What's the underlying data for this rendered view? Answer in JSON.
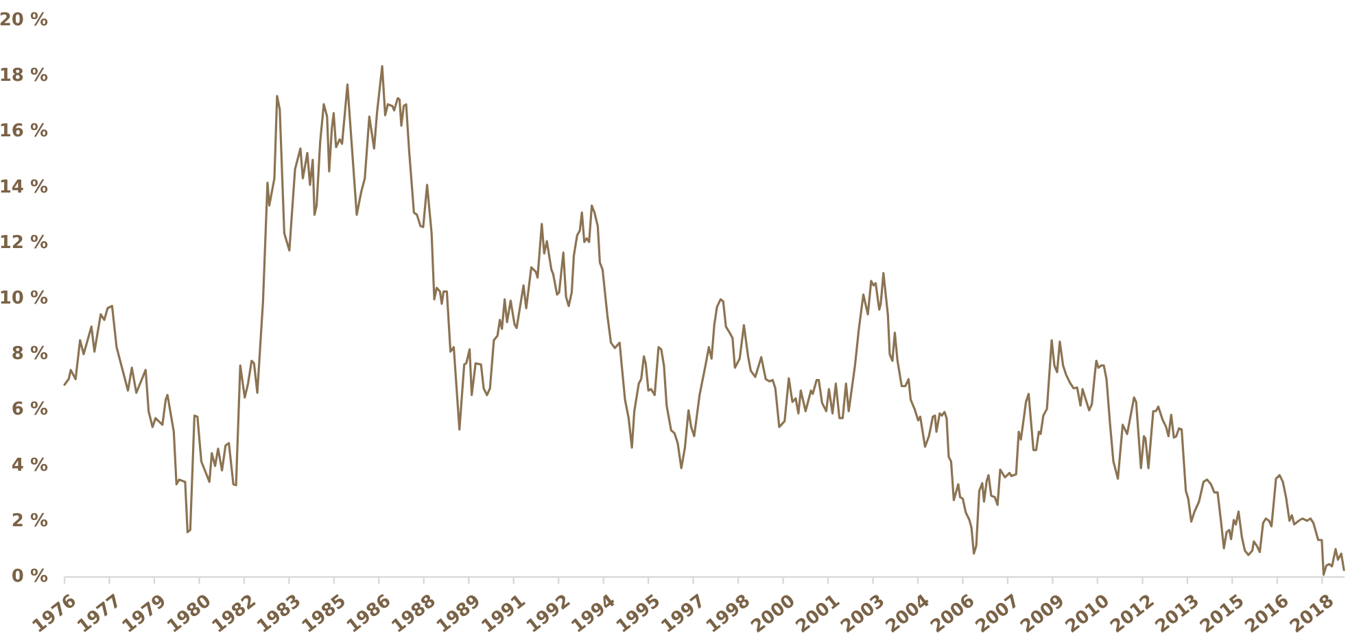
{
  "chart_data": {
    "type": "line",
    "x": [
      1976.0,
      1976.14,
      1976.21,
      1976.37,
      1976.52,
      1976.64,
      1976.9,
      1977.0,
      1977.21,
      1977.33,
      1977.44,
      1977.59,
      1977.74,
      1978.12,
      1978.25,
      1978.4,
      1978.71,
      1978.81,
      1978.94,
      1979.04,
      1979.27,
      1979.38,
      1979.44,
      1979.65,
      1979.74,
      1979.83,
      1980.03,
      1980.11,
      1980.2,
      1980.34,
      1980.44,
      1980.57,
      1980.84,
      1980.92,
      1981.03,
      1981.13,
      1981.26,
      1981.38,
      1981.49,
      1981.64,
      1981.73,
      1981.87,
      1982.02,
      1982.13,
      1982.25,
      1982.33,
      1982.44,
      1982.63,
      1982.78,
      1982.84,
      1983.01,
      1983.1,
      1983.19,
      1983.34,
      1983.51,
      1983.7,
      1983.88,
      1983.96,
      1984.11,
      1984.2,
      1984.29,
      1984.35,
      1984.42,
      1984.54,
      1984.66,
      1984.77,
      1984.84,
      1984.93,
      1984.99,
      1985.07,
      1985.19,
      1985.27,
      1985.45,
      1985.76,
      1985.91,
      1986.03,
      1986.18,
      1986.34,
      1986.44,
      1986.61,
      1986.71,
      1986.8,
      1986.95,
      1987.01,
      1987.13,
      1987.19,
      1987.25,
      1987.33,
      1987.41,
      1987.51,
      1987.67,
      1987.77,
      1987.89,
      1987.98,
      1988.11,
      1988.26,
      1988.35,
      1988.43,
      1988.54,
      1988.6,
      1988.66,
      1988.77,
      1988.89,
      1989.0,
      1989.19,
      1989.35,
      1989.42,
      1989.53,
      1989.6,
      1989.73,
      1989.91,
      1990.0,
      1990.11,
      1990.21,
      1990.34,
      1990.46,
      1990.54,
      1990.61,
      1990.7,
      1990.78,
      1990.9,
      1991.03,
      1991.1,
      1991.33,
      1991.42,
      1991.59,
      1991.74,
      1991.8,
      1991.94,
      1992.02,
      1992.11,
      1992.26,
      1992.32,
      1992.45,
      1992.52,
      1992.66,
      1992.75,
      1992.84,
      1992.94,
      1993.01,
      1993.12,
      1993.21,
      1993.28,
      1993.36,
      1993.44,
      1993.52,
      1993.61,
      1993.7,
      1993.81,
      1993.88,
      1993.97,
      1994.13,
      1994.25,
      1994.38,
      1994.54,
      1994.61,
      1994.72,
      1994.84,
      1994.95,
      1995.03,
      1995.18,
      1995.26,
      1995.35,
      1995.41,
      1995.5,
      1995.59,
      1995.71,
      1995.84,
      1995.93,
      1996.02,
      1996.11,
      1996.26,
      1996.37,
      1996.48,
      1996.6,
      1996.72,
      1996.84,
      1996.93,
      1997.03,
      1997.21,
      1997.3,
      1997.42,
      1997.52,
      1997.61,
      1997.7,
      1997.79,
      1997.91,
      1998.0,
      1998.09,
      1998.23,
      1998.31,
      1998.39,
      1998.55,
      1998.69,
      1998.83,
      1998.92,
      1999.07,
      1999.27,
      1999.42,
      1999.55,
      1999.65,
      1999.74,
      1999.87,
      2000.05,
      2000.19,
      2000.31,
      2000.42,
      2000.51,
      2000.59,
      2000.75,
      2000.93,
      2000.99,
      2001.12,
      2001.19,
      2001.3,
      2001.44,
      2001.53,
      2001.65,
      2001.76,
      2001.88,
      2001.99,
      2002.1,
      2002.19,
      2002.4,
      2002.53,
      2002.68,
      2002.83,
      2002.94,
      2003.02,
      2003.09,
      2003.21,
      2003.26,
      2003.35,
      2003.5,
      2003.56,
      2003.65,
      2003.73,
      2003.82,
      2003.96,
      2004.08,
      2004.19,
      2004.26,
      2004.39,
      2004.51,
      2004.58,
      2004.74,
      2004.87,
      2005.0,
      2005.07,
      2005.12,
      2005.23,
      2005.3,
      2005.39,
      2005.46,
      2005.53,
      2005.61,
      2005.7,
      2005.85,
      2005.91,
      2006.0,
      2006.1,
      2006.22,
      2006.29,
      2006.37,
      2006.45,
      2006.55,
      2006.65,
      2006.71,
      2006.8,
      2006.86,
      2006.95,
      2007.07,
      2007.16,
      2007.25,
      2007.41,
      2007.56,
      2007.62,
      2007.78,
      2007.87,
      2007.94,
      2008.05,
      2008.11,
      2008.2,
      2008.36,
      2008.45,
      2008.54,
      2008.6,
      2008.69,
      2008.81,
      2008.97,
      2009.06,
      2009.15,
      2009.24,
      2009.35,
      2009.45,
      2009.58,
      2009.7,
      2009.82,
      2009.93,
      2010.0,
      2010.22,
      2010.31,
      2010.4,
      2010.46,
      2010.53,
      2010.62,
      2010.71,
      2010.8,
      2010.92,
      2011.03,
      2011.18,
      2011.34,
      2011.49,
      2011.72,
      2011.79,
      2011.95,
      2012.05,
      2012.1,
      2012.2,
      2012.36,
      2012.45,
      2012.53,
      2012.67,
      2012.79,
      2012.87,
      2012.96,
      2013.05,
      2013.13,
      2013.22,
      2013.31,
      2013.45,
      2013.53,
      2013.63,
      2013.74,
      2013.89,
      2014.04,
      2014.16,
      2014.29,
      2014.4,
      2014.51,
      2014.63,
      2014.72,
      2014.81,
      2014.9,
      2014.96,
      2015.05,
      2015.12,
      2015.21,
      2015.32,
      2015.42,
      2015.54,
      2015.67,
      2015.72,
      2015.82,
      2015.92,
      2016.03,
      2016.12,
      2016.23,
      2016.31,
      2016.4,
      2016.46,
      2016.58,
      2016.69,
      2016.8,
      2016.91,
      2016.99,
      2017.07,
      2017.22,
      2017.34,
      2017.5,
      2017.61,
      2017.71,
      2017.87,
      2017.99,
      2018.05,
      2018.14,
      2018.24,
      2018.33,
      2018.45,
      2018.53,
      2018.64,
      2018.73
    ],
    "series": [
      {
        "color": "#8b7352",
        "values": [
          6.91,
          7.11,
          7.44,
          7.11,
          8.51,
          8.01,
          9.0,
          8.1,
          9.44,
          9.24,
          9.66,
          9.74,
          8.26,
          6.7,
          7.52,
          6.62,
          7.44,
          5.96,
          5.39,
          5.71,
          5.47,
          6.37,
          6.54,
          5.22,
          3.33,
          3.5,
          3.42,
          1.61,
          1.69,
          5.8,
          5.76,
          4.15,
          3.42,
          4.45,
          3.99,
          4.61,
          3.83,
          4.73,
          4.81,
          3.33,
          3.3,
          7.6,
          6.45,
          6.95,
          7.77,
          7.68,
          6.62,
          9.9,
          14.17,
          13.35,
          14.33,
          17.29,
          16.8,
          12.36,
          11.74,
          14.66,
          15.4,
          14.33,
          15.24,
          14.09,
          14.99,
          13.02,
          13.35,
          15.65,
          16.99,
          16.55,
          14.58,
          16.14,
          16.67,
          15.45,
          15.73,
          15.57,
          17.7,
          13.02,
          13.84,
          14.33,
          16.55,
          15.4,
          16.72,
          18.36,
          16.6,
          16.99,
          16.93,
          16.77,
          17.21,
          17.16,
          16.22,
          16.93,
          16.99,
          15.32,
          13.1,
          13.02,
          12.61,
          12.58,
          14.09,
          12.36,
          9.98,
          10.39,
          10.26,
          9.82,
          10.26,
          10.26,
          8.1,
          8.26,
          5.3,
          7.64,
          7.68,
          8.18,
          6.54,
          7.68,
          7.64,
          6.78,
          6.54,
          6.78,
          8.51,
          8.67,
          9.24,
          8.92,
          9.98,
          9.16,
          9.93,
          9.08,
          8.95,
          10.48,
          9.66,
          11.13,
          10.97,
          10.76,
          12.69,
          11.63,
          12.07,
          11.05,
          10.89,
          10.15,
          10.23,
          11.66,
          10.07,
          9.74,
          10.23,
          11.54,
          12.28,
          12.45,
          13.1,
          12.04,
          12.17,
          12.04,
          13.35,
          13.1,
          12.61,
          11.3,
          11.05,
          9.41,
          8.42,
          8.23,
          8.42,
          7.6,
          6.37,
          5.71,
          4.65,
          5.96,
          6.95,
          7.11,
          7.93,
          7.68,
          6.7,
          6.75,
          6.54,
          8.26,
          8.18,
          7.6,
          6.16,
          5.27,
          5.17,
          4.81,
          3.91,
          4.65,
          5.99,
          5.39,
          5.06,
          6.54,
          7.03,
          7.68,
          8.26,
          7.85,
          9.05,
          9.7,
          9.98,
          9.9,
          9.0,
          8.75,
          8.59,
          7.52,
          7.85,
          9.05,
          7.93,
          7.41,
          7.19,
          7.9,
          7.11,
          7.03,
          7.08,
          6.78,
          5.39,
          5.6,
          7.14,
          6.29,
          6.42,
          5.88,
          6.7,
          5.96,
          6.7,
          6.58,
          7.08,
          7.08,
          6.26,
          5.96,
          6.75,
          5.88,
          6.95,
          5.71,
          5.71,
          6.95,
          5.96,
          7.6,
          8.92,
          10.15,
          9.44,
          10.64,
          10.48,
          10.56,
          9.61,
          9.82,
          10.92,
          9.41,
          8.01,
          7.77,
          8.78,
          7.77,
          6.86,
          6.86,
          7.11,
          6.37,
          6.04,
          5.63,
          5.76,
          4.68,
          5.06,
          5.76,
          5.8,
          5.22,
          5.88,
          5.8,
          5.93,
          5.71,
          4.32,
          4.15,
          2.76,
          3.33,
          2.87,
          2.81,
          2.32,
          2.05,
          1.77,
          0.84,
          1.12,
          3.09,
          3.37,
          2.71,
          3.46,
          3.66,
          2.92,
          2.87,
          2.59,
          3.86,
          3.58,
          3.74,
          3.63,
          3.69,
          5.22,
          4.94,
          5.8,
          6.29,
          6.58,
          4.56,
          4.56,
          5.22,
          5.14,
          5.8,
          6.04,
          8.51,
          7.6,
          7.36,
          8.46,
          7.6,
          7.27,
          6.98,
          6.78,
          6.81,
          6.16,
          6.75,
          5.99,
          6.21,
          7.19,
          7.77,
          7.52,
          7.6,
          7.6,
          7.11,
          5.47,
          4.15,
          3.53,
          5.47,
          5.14,
          6.45,
          6.29,
          3.91,
          5.06,
          4.98,
          3.91,
          5.96,
          5.96,
          6.12,
          5.66,
          5.39,
          5.06,
          5.83,
          5.01,
          5.06,
          5.34,
          5.3,
          3.09,
          2.81,
          1.99,
          2.35,
          2.71,
          3.42,
          3.5,
          3.33,
          3.04,
          3.04,
          1.94,
          1.03,
          1.61,
          1.69,
          1.36,
          2.05,
          1.89,
          2.35,
          1.44,
          0.95,
          0.79,
          0.95,
          1.28,
          1.12,
          0.9,
          1.94,
          2.1,
          2.02,
          1.82,
          2.84,
          3.53,
          3.66,
          3.42,
          2.84,
          2.02,
          2.22,
          1.89,
          2.02,
          2.1,
          2.02,
          2.1,
          1.94,
          1.33,
          1.33,
          0.08,
          0.41,
          0.46,
          0.38,
          1.0,
          0.62,
          0.84,
          0.25
        ]
      }
    ],
    "xlim": [
      1976.0,
      2018.75
    ],
    "xticks": [
      1976,
      {
        "value": 1977.5,
        "label": "1977"
      },
      1979,
      {
        "value": 1980.5,
        "label": "1980"
      },
      1982,
      {
        "value": 1983.5,
        "label": "1983"
      },
      1985,
      {
        "value": 1986.5,
        "label": "1986"
      },
      1988,
      {
        "value": 1989.5,
        "label": "1989"
      },
      1991,
      {
        "value": 1992.5,
        "label": "1992"
      },
      1994,
      {
        "value": 1995.5,
        "label": "1995"
      },
      1997,
      {
        "value": 1998.5,
        "label": "1998"
      },
      2000,
      {
        "value": 2001.5,
        "label": "2001"
      },
      2003,
      {
        "value": 2004.5,
        "label": "2004"
      },
      2006,
      {
        "value": 2007.5,
        "label": "2007"
      },
      2009,
      {
        "value": 2010.5,
        "label": "2010"
      },
      2012,
      {
        "value": 2013.5,
        "label": "2013"
      },
      2015,
      {
        "value": 2016.5,
        "label": "2016"
      },
      2018
    ],
    "ylim": [
      0,
      20
    ],
    "yticks": [
      {
        "value": 0,
        "label": "0 %"
      },
      {
        "value": 2,
        "label": "2 %"
      },
      {
        "value": 4,
        "label": "4 %"
      },
      {
        "value": 6,
        "label": "6 %"
      },
      {
        "value": 8,
        "label": "8 %"
      },
      {
        "value": 10,
        "label": "10 %"
      },
      {
        "value": 12,
        "label": "12 %"
      },
      {
        "value": 14,
        "label": "14 %"
      },
      {
        "value": 16,
        "label": "16 %"
      },
      {
        "value": 18,
        "label": "18 %"
      },
      {
        "value": 20,
        "label": "20 %"
      }
    ],
    "grid": false,
    "marker": "none",
    "line_style": "solid"
  }
}
